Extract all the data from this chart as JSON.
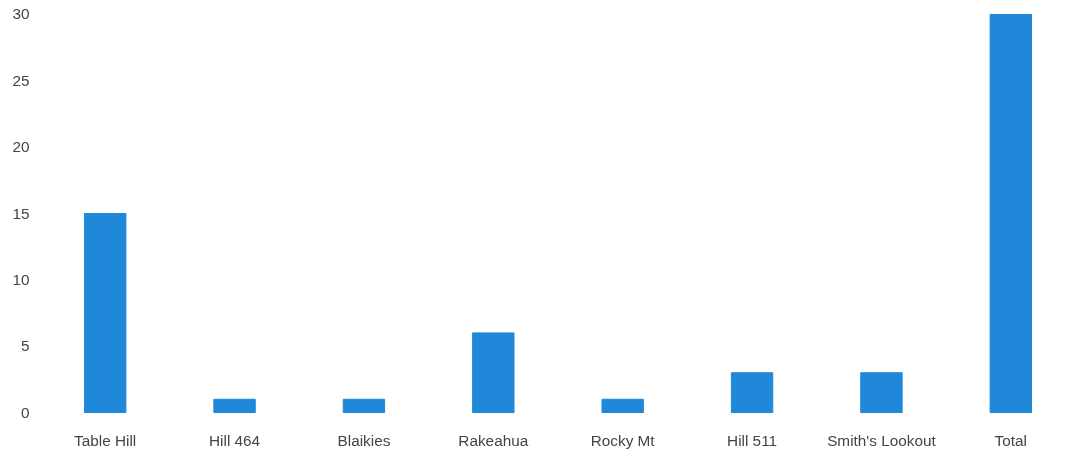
{
  "chart_data": {
    "type": "bar",
    "categories": [
      "Table Hill",
      "Hill 464",
      "Blaikies",
      "Rakeahua",
      "Rocky Mt",
      "Hill 511",
      "Smith's Lookout",
      "Total"
    ],
    "values": [
      15,
      1,
      1,
      6,
      1,
      3,
      3,
      30
    ],
    "color": "#1f88d8",
    "ylim": [
      0,
      30
    ],
    "yticks": [
      0,
      5,
      10,
      15,
      20,
      25,
      30
    ],
    "grid": false
  }
}
